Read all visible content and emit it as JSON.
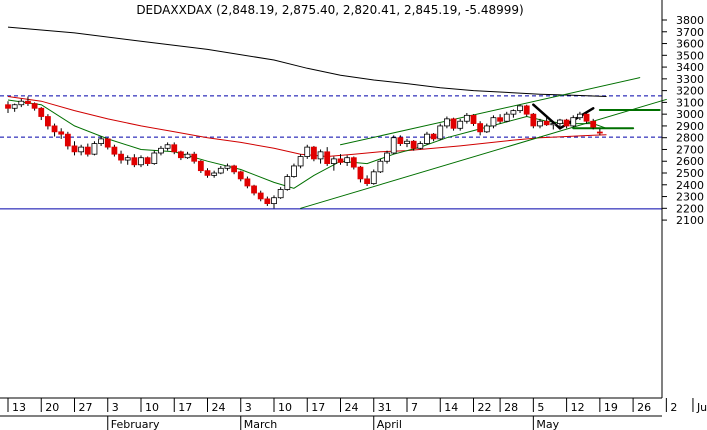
{
  "chart_data": {
    "type": "candlestick",
    "title": "DEDAXXDAX (2,848.19, 2,875.40, 2,820.41, 2,845.19, -5.48999)",
    "y_axis": {
      "range": [
        2080,
        3900
      ],
      "ticks": [
        3800,
        3700,
        3600,
        3500,
        3400,
        3300,
        3200,
        3100,
        3000,
        2900,
        2800,
        2700,
        2600,
        2500,
        2400,
        2300,
        2200,
        2100
      ],
      "position": "right"
    },
    "x_axis": {
      "day_ticks": [
        {
          "label": "13",
          "i": 0
        },
        {
          "label": "20",
          "i": 5
        },
        {
          "label": "27",
          "i": 10
        },
        {
          "label": "3",
          "i": 15
        },
        {
          "label": "10",
          "i": 20
        },
        {
          "label": "17",
          "i": 25
        },
        {
          "label": "24",
          "i": 30
        },
        {
          "label": "3",
          "i": 35
        },
        {
          "label": "10",
          "i": 40
        },
        {
          "label": "17",
          "i": 45
        },
        {
          "label": "24",
          "i": 50
        },
        {
          "label": "31",
          "i": 55
        },
        {
          "label": "7",
          "i": 60
        },
        {
          "label": "14",
          "i": 65
        },
        {
          "label": "22",
          "i": 70
        },
        {
          "label": "28",
          "i": 74
        },
        {
          "label": "5",
          "i": 79
        },
        {
          "label": "12",
          "i": 84
        },
        {
          "label": "19",
          "i": 89
        },
        {
          "label": "26",
          "i": 94
        },
        {
          "label": "2",
          "i": 99
        },
        {
          "label": "Ju",
          "i": 103
        }
      ],
      "months": [
        {
          "label": "February",
          "i": 15
        },
        {
          "label": "March",
          "i": 35
        },
        {
          "label": "April",
          "i": 55
        },
        {
          "label": "May",
          "i": 79
        }
      ]
    },
    "candles": [
      [
        3080,
        3110,
        3010,
        3050
      ],
      [
        3050,
        3090,
        3020,
        3080
      ],
      [
        3080,
        3130,
        3060,
        3110
      ],
      [
        3110,
        3150,
        3070,
        3090
      ],
      [
        3090,
        3100,
        3030,
        3050
      ],
      [
        3050,
        3060,
        2950,
        2980
      ],
      [
        2980,
        3000,
        2870,
        2900
      ],
      [
        2900,
        2920,
        2810,
        2850
      ],
      [
        2850,
        2880,
        2790,
        2830
      ],
      [
        2830,
        2850,
        2700,
        2730
      ],
      [
        2730,
        2770,
        2650,
        2680
      ],
      [
        2680,
        2740,
        2650,
        2720
      ],
      [
        2720,
        2750,
        2640,
        2660
      ],
      [
        2660,
        2770,
        2650,
        2750
      ],
      [
        2750,
        2810,
        2730,
        2790
      ],
      [
        2790,
        2800,
        2700,
        2720
      ],
      [
        2720,
        2740,
        2640,
        2660
      ],
      [
        2660,
        2690,
        2580,
        2610
      ],
      [
        2610,
        2650,
        2570,
        2630
      ],
      [
        2630,
        2660,
        2550,
        2570
      ],
      [
        2570,
        2650,
        2550,
        2630
      ],
      [
        2630,
        2640,
        2560,
        2580
      ],
      [
        2580,
        2690,
        2570,
        2670
      ],
      [
        2670,
        2730,
        2650,
        2710
      ],
      [
        2710,
        2760,
        2690,
        2740
      ],
      [
        2740,
        2760,
        2660,
        2680
      ],
      [
        2680,
        2690,
        2610,
        2630
      ],
      [
        2630,
        2680,
        2620,
        2660
      ],
      [
        2660,
        2680,
        2580,
        2600
      ],
      [
        2600,
        2610,
        2500,
        2520
      ],
      [
        2520,
        2540,
        2460,
        2480
      ],
      [
        2480,
        2520,
        2460,
        2500
      ],
      [
        2500,
        2560,
        2490,
        2540
      ],
      [
        2540,
        2580,
        2520,
        2560
      ],
      [
        2560,
        2570,
        2490,
        2510
      ],
      [
        2510,
        2520,
        2430,
        2450
      ],
      [
        2450,
        2470,
        2370,
        2390
      ],
      [
        2390,
        2400,
        2310,
        2330
      ],
      [
        2330,
        2350,
        2260,
        2280
      ],
      [
        2280,
        2300,
        2220,
        2240
      ],
      [
        2240,
        2310,
        2200,
        2290
      ],
      [
        2290,
        2380,
        2280,
        2360
      ],
      [
        2360,
        2490,
        2350,
        2470
      ],
      [
        2470,
        2580,
        2460,
        2560
      ],
      [
        2560,
        2660,
        2540,
        2640
      ],
      [
        2640,
        2740,
        2620,
        2720
      ],
      [
        2720,
        2730,
        2600,
        2620
      ],
      [
        2620,
        2700,
        2580,
        2680
      ],
      [
        2680,
        2720,
        2560,
        2580
      ],
      [
        2580,
        2640,
        2520,
        2620
      ],
      [
        2620,
        2660,
        2570,
        2590
      ],
      [
        2590,
        2650,
        2560,
        2630
      ],
      [
        2630,
        2640,
        2530,
        2550
      ],
      [
        2550,
        2560,
        2420,
        2450
      ],
      [
        2450,
        2480,
        2390,
        2410
      ],
      [
        2410,
        2530,
        2400,
        2510
      ],
      [
        2510,
        2620,
        2500,
        2600
      ],
      [
        2600,
        2690,
        2580,
        2670
      ],
      [
        2670,
        2820,
        2660,
        2800
      ],
      [
        2800,
        2820,
        2730,
        2750
      ],
      [
        2750,
        2790,
        2720,
        2770
      ],
      [
        2770,
        2780,
        2690,
        2710
      ],
      [
        2710,
        2770,
        2700,
        2750
      ],
      [
        2750,
        2850,
        2740,
        2830
      ],
      [
        2830,
        2840,
        2770,
        2790
      ],
      [
        2790,
        2920,
        2780,
        2900
      ],
      [
        2900,
        2980,
        2880,
        2960
      ],
      [
        2960,
        2970,
        2860,
        2880
      ],
      [
        2880,
        2960,
        2860,
        2940
      ],
      [
        2940,
        3010,
        2920,
        2990
      ],
      [
        2990,
        3000,
        2900,
        2920
      ],
      [
        2920,
        2940,
        2820,
        2850
      ],
      [
        2850,
        2920,
        2840,
        2900
      ],
      [
        2900,
        2990,
        2880,
        2970
      ],
      [
        2970,
        3000,
        2920,
        2940
      ],
      [
        2940,
        3020,
        2930,
        3000
      ],
      [
        3000,
        3040,
        2970,
        3030
      ],
      [
        3030,
        3080,
        3010,
        3070
      ],
      [
        3070,
        3080,
        2980,
        3000
      ],
      [
        3000,
        3010,
        2880,
        2900
      ],
      [
        2900,
        2960,
        2880,
        2940
      ],
      [
        2940,
        2990,
        2900,
        2910
      ],
      [
        2910,
        2940,
        2870,
        2920
      ],
      [
        2920,
        2960,
        2890,
        2950
      ],
      [
        2950,
        2960,
        2880,
        2900
      ],
      [
        2900,
        2990,
        2890,
        2970
      ],
      [
        2970,
        3020,
        2950,
        3000
      ],
      [
        3000,
        3020,
        2920,
        2940
      ],
      [
        2940,
        2960,
        2870,
        2890
      ],
      [
        2848.19,
        2875.4,
        2820.41,
        2845.19
      ]
    ],
    "moving_averages": [
      {
        "color": "#000000",
        "points": [
          [
            0,
            3740
          ],
          [
            10,
            3690
          ],
          [
            20,
            3620
          ],
          [
            30,
            3550
          ],
          [
            40,
            3460
          ],
          [
            45,
            3390
          ],
          [
            50,
            3330
          ],
          [
            55,
            3290
          ],
          [
            60,
            3260
          ],
          [
            65,
            3225
          ],
          [
            70,
            3200
          ],
          [
            75,
            3185
          ],
          [
            80,
            3170
          ],
          [
            85,
            3160
          ],
          [
            90,
            3150
          ]
        ]
      },
      {
        "color": "#d00000",
        "points": [
          [
            0,
            3150
          ],
          [
            5,
            3110
          ],
          [
            10,
            3030
          ],
          [
            15,
            2960
          ],
          [
            20,
            2900
          ],
          [
            25,
            2850
          ],
          [
            30,
            2800
          ],
          [
            35,
            2760
          ],
          [
            40,
            2710
          ],
          [
            44,
            2660
          ],
          [
            48,
            2640
          ],
          [
            52,
            2660
          ],
          [
            56,
            2680
          ],
          [
            60,
            2690
          ],
          [
            64,
            2710
          ],
          [
            68,
            2730
          ],
          [
            72,
            2755
          ],
          [
            76,
            2780
          ],
          [
            80,
            2800
          ],
          [
            84,
            2810
          ],
          [
            88,
            2820
          ],
          [
            90,
            2825
          ]
        ]
      },
      {
        "color": "#007000",
        "points": [
          [
            0,
            3120
          ],
          [
            5,
            3080
          ],
          [
            10,
            2900
          ],
          [
            15,
            2790
          ],
          [
            20,
            2700
          ],
          [
            25,
            2680
          ],
          [
            30,
            2600
          ],
          [
            35,
            2530
          ],
          [
            40,
            2420
          ],
          [
            43,
            2370
          ],
          [
            46,
            2480
          ],
          [
            50,
            2600
          ],
          [
            54,
            2580
          ],
          [
            58,
            2660
          ],
          [
            62,
            2720
          ],
          [
            66,
            2800
          ],
          [
            70,
            2860
          ],
          [
            74,
            2920
          ],
          [
            78,
            2980
          ],
          [
            81,
            2940
          ],
          [
            84,
            2920
          ],
          [
            88,
            2920
          ],
          [
            90,
            2880
          ]
        ]
      }
    ],
    "horizontal_lines": [
      {
        "y": 3155,
        "color": "#0000aa",
        "style": "dashed"
      },
      {
        "y": 2805,
        "color": "#0000aa",
        "style": "dashed"
      },
      {
        "y": 2195,
        "color": "#0000aa",
        "style": "solid"
      }
    ],
    "trend_lines": [
      {
        "color": "#007000",
        "width": 1,
        "from": [
          50,
          2740
        ],
        "to": [
          95,
          3310
        ]
      },
      {
        "color": "#007000",
        "width": 1,
        "from": [
          44,
          2200
        ],
        "to": [
          99,
          3125
        ]
      },
      {
        "color": "#007000",
        "width": 2,
        "from": [
          89,
          3035
        ],
        "to": [
          98,
          3035
        ]
      },
      {
        "color": "#007000",
        "width": 2,
        "from": [
          85,
          2880
        ],
        "to": [
          94,
          2880
        ]
      },
      {
        "color": "#000000",
        "width": 2.5,
        "from": [
          79,
          3080
        ],
        "to": [
          83,
          2880
        ]
      },
      {
        "color": "#000000",
        "width": 2.5,
        "from": [
          83,
          2880
        ],
        "to": [
          88,
          3050
        ]
      }
    ]
  }
}
